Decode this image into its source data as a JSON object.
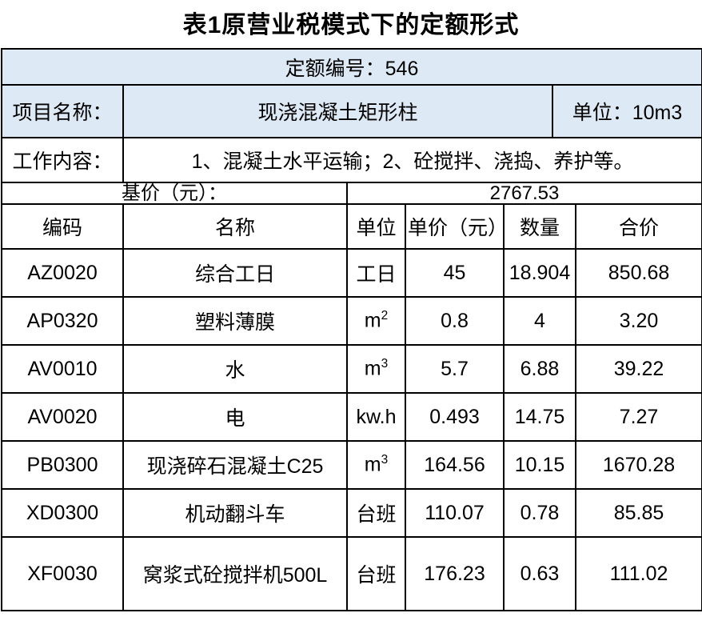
{
  "page": {
    "title": "表1原营业税模式下的定额形式"
  },
  "quota": {
    "label": "定额编号：",
    "value": "546"
  },
  "project": {
    "label": "项目名称：",
    "value": "现浇混凝土矩形柱",
    "unit_label": "单位：",
    "unit_value": "10m3"
  },
  "work": {
    "label": "工作内容：",
    "value": "1、混凝土水平运输；2、砼搅拌、浇捣、养护等。"
  },
  "base_price": {
    "label": "基价（元）：",
    "value": "2767.53"
  },
  "table": {
    "columns": [
      "编码",
      "名称",
      "单位",
      "单价（元）",
      "数量",
      "合价"
    ],
    "rows": [
      [
        "AZ0020",
        "综合工日",
        "工日",
        "45",
        "18.904",
        "850.68"
      ],
      [
        "AP0320",
        "塑料薄膜",
        "m^2",
        "0.8",
        "4",
        "3.20"
      ],
      [
        "AV0010",
        "水",
        "m^3",
        "5.7",
        "6.88",
        "39.22"
      ],
      [
        "AV0020",
        "电",
        "kw.h",
        "0.493",
        "14.75",
        "7.27"
      ],
      [
        "PB0300",
        "现浇碎石混凝土C25",
        "m^3",
        "164.56",
        "10.15",
        "1670.28"
      ],
      [
        "XD0300",
        "机动翻斗车",
        "台班",
        "110.07",
        "0.78",
        "85.85"
      ],
      [
        "XF0030",
        "窝浆式砼搅拌机500L",
        "台班",
        "176.23",
        "0.63",
        "111.02"
      ]
    ]
  },
  "colors": {
    "highlight_bg": "#dde9f5",
    "border": "#000000",
    "text": "#000000"
  }
}
